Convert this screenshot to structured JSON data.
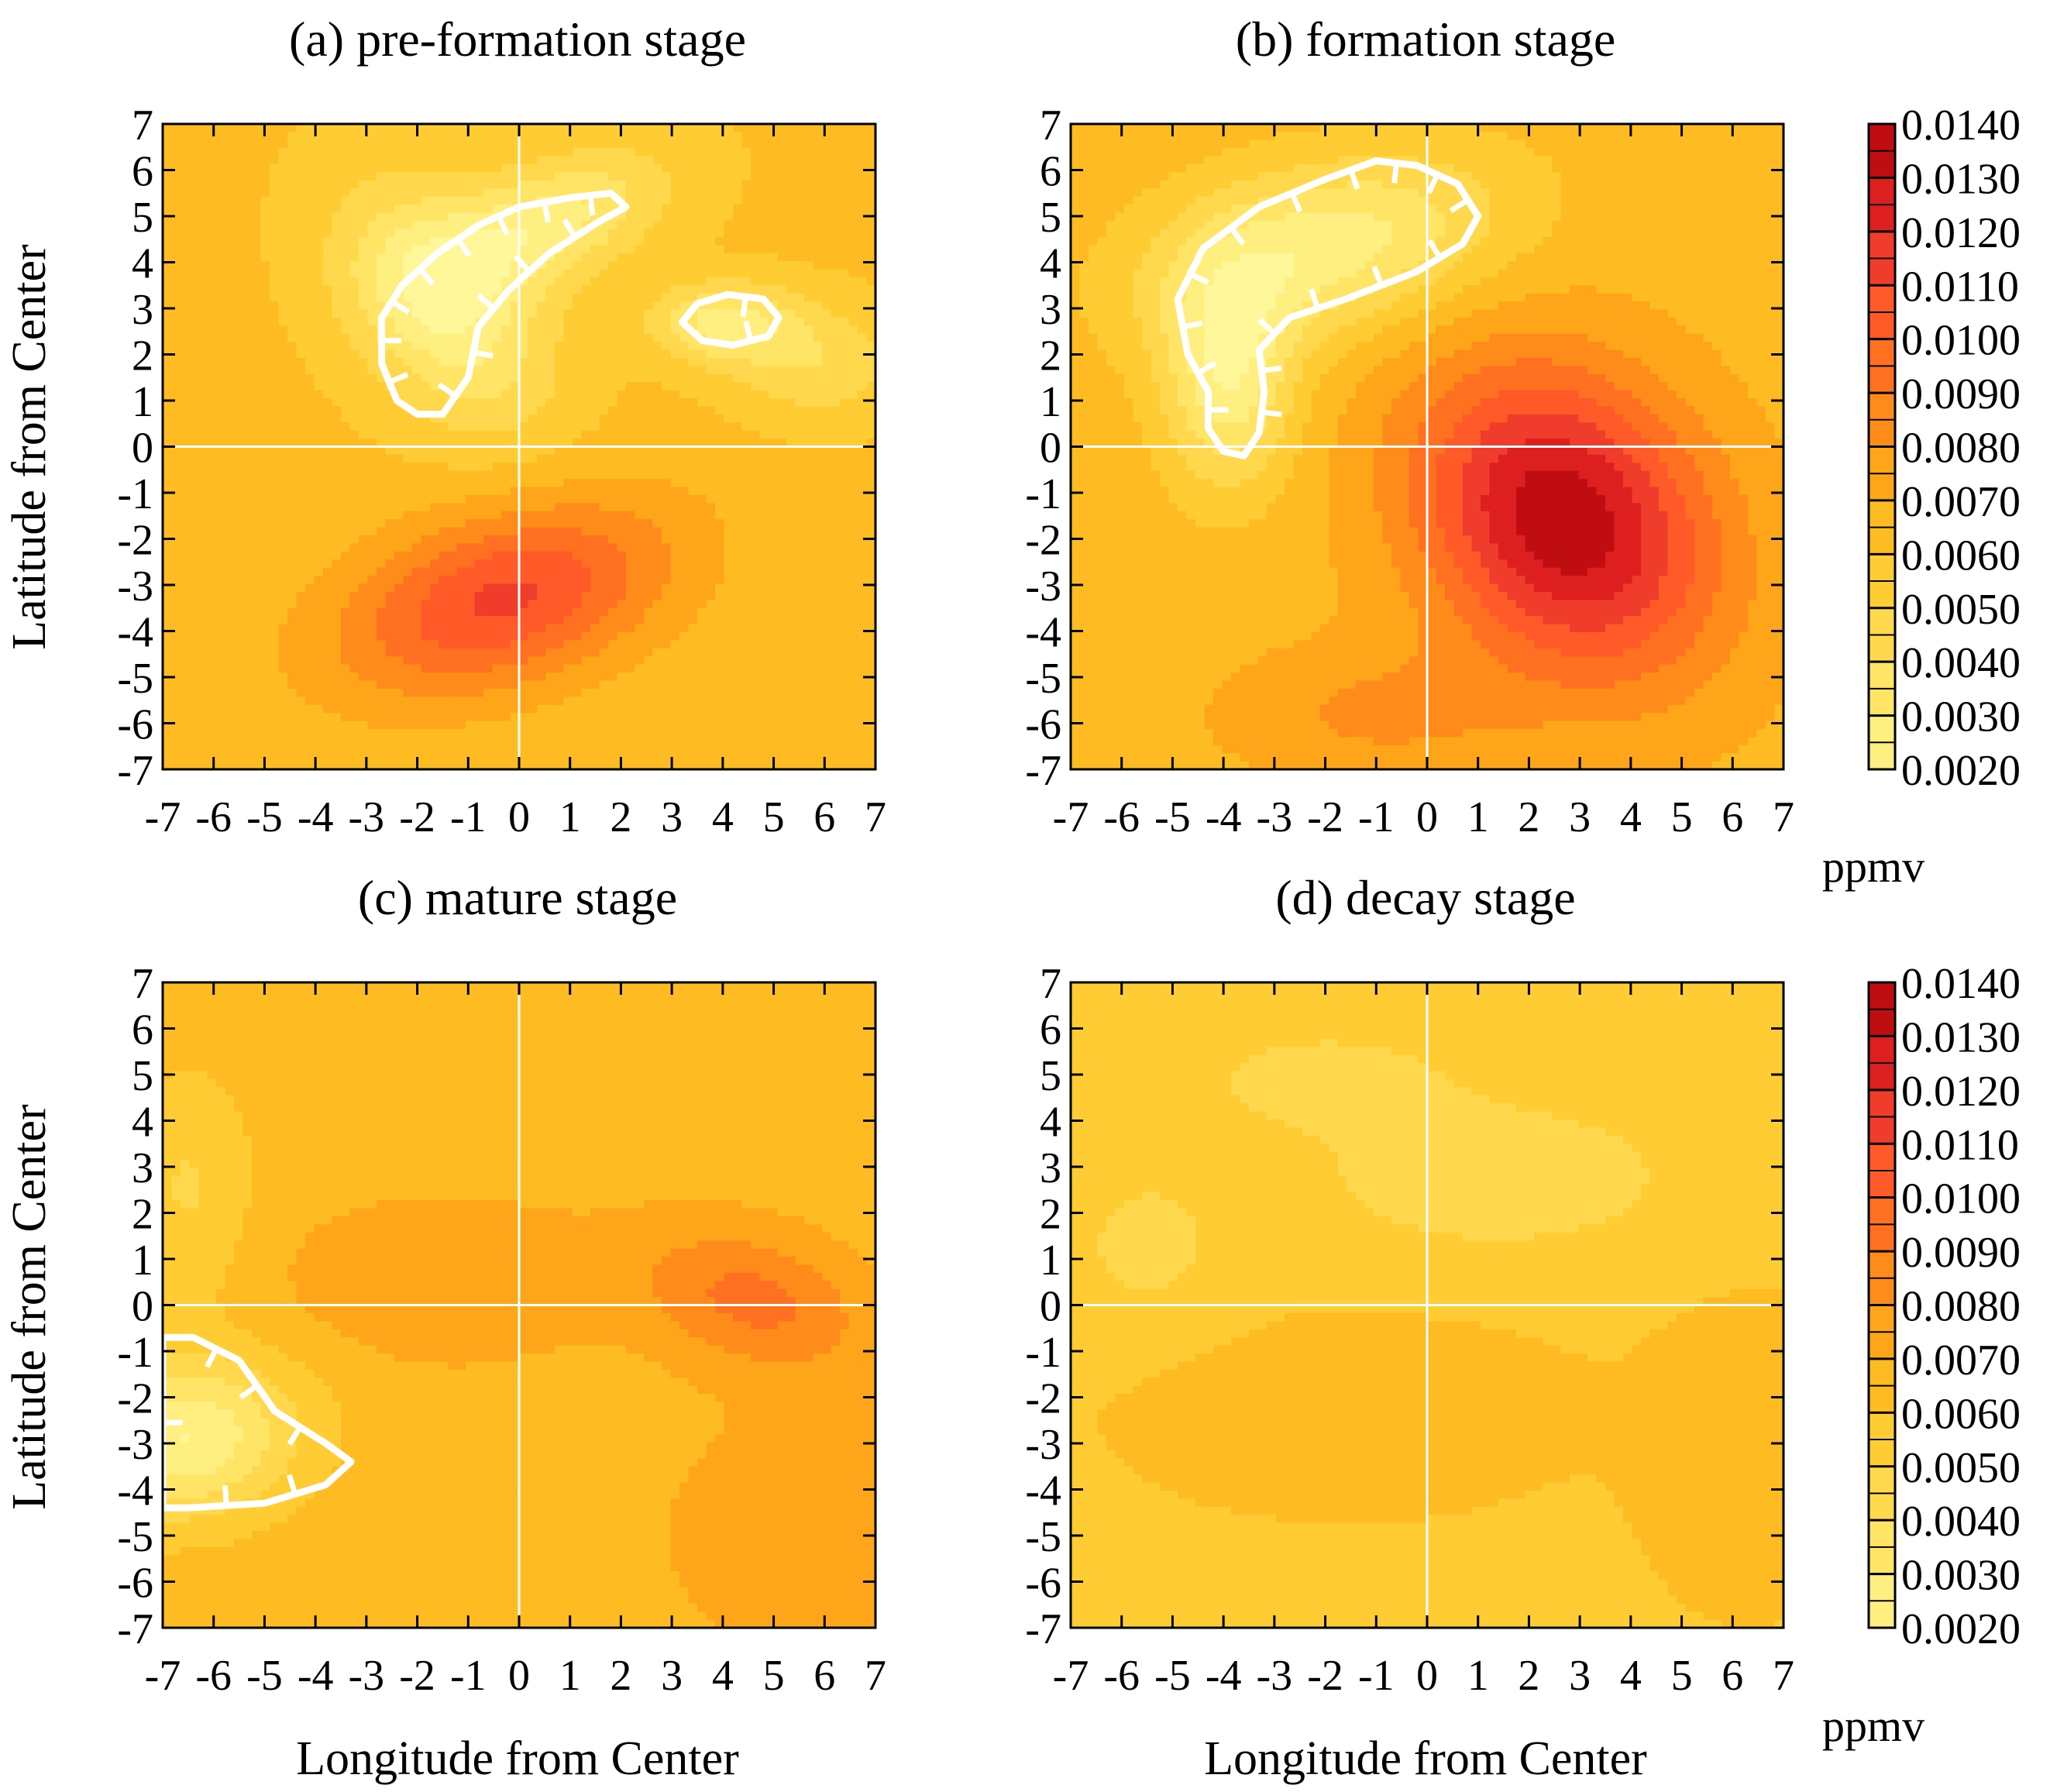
{
  "figure": {
    "colorbar": {
      "levels": [
        "0.0020",
        "0.0030",
        "0.0040",
        "0.0050",
        "0.0060",
        "0.0070",
        "0.0080",
        "0.0090",
        "0.0100",
        "0.0110",
        "0.0120",
        "0.0130",
        "0.0140"
      ],
      "unit": "ppmv",
      "colors": [
        "#fff799",
        "#ffef80",
        "#ffe466",
        "#ffd84d",
        "#ffcc33",
        "#ffbb22",
        "#ffa51a",
        "#ff8c1a",
        "#ff7020",
        "#ff5a28",
        "#f03c2a",
        "#dd1f20",
        "#c00d12",
        "#a50008"
      ]
    }
  },
  "chart_data": [
    {
      "type": "heatmap",
      "title": "(a)  pre-formation stage",
      "xlabel": "",
      "ylabel": "Latitude from Center",
      "xlim": [
        -7,
        7
      ],
      "ylim": [
        -7,
        7
      ],
      "x_ticks": [
        "-7",
        "-6",
        "-5",
        "-4",
        "-3",
        "-2",
        "-1",
        "0",
        "1",
        "2",
        "3",
        "4",
        "5",
        "6",
        "7"
      ],
      "y_ticks": [
        "7",
        "6",
        "5",
        "4",
        "3",
        "2",
        "1",
        "0",
        "-1",
        "-2",
        "-3",
        "-4",
        "-5",
        "-6",
        "-7"
      ],
      "background": 0.0062,
      "features": [
        {
          "kind": "max",
          "x": -0.3,
          "y": -3.3,
          "sx": 2.4,
          "sy": 1.3,
          "rot": 20,
          "value": 0.0112
        },
        {
          "kind": "min",
          "x": -1.5,
          "y": 3.0,
          "sx": 1.2,
          "sy": 2.0,
          "rot": 30,
          "value": 0.0022
        },
        {
          "kind": "min",
          "x": 0.5,
          "y": 4.8,
          "sx": 1.8,
          "sy": 0.9,
          "rot": 25,
          "value": 0.0026
        },
        {
          "kind": "min",
          "x": 4.0,
          "y": 2.7,
          "sx": 1.0,
          "sy": 0.6,
          "rot": 0,
          "value": 0.0027
        },
        {
          "kind": "min",
          "x": 5.8,
          "y": 1.8,
          "sx": 1.2,
          "sy": 0.9,
          "rot": 0,
          "value": 0.0042
        }
      ],
      "hatched_minima": [
        [
          [
            -2.0,
            0.7
          ],
          [
            -1.5,
            0.7
          ],
          [
            -1.0,
            1.5
          ],
          [
            -0.8,
            2.6
          ],
          [
            -0.2,
            3.4
          ],
          [
            0.6,
            4.2
          ],
          [
            1.6,
            4.9
          ],
          [
            2.1,
            5.2
          ],
          [
            1.8,
            5.5
          ],
          [
            1.0,
            5.4
          ],
          [
            0.0,
            5.2
          ],
          [
            -0.8,
            4.8
          ],
          [
            -1.6,
            4.2
          ],
          [
            -2.3,
            3.5
          ],
          [
            -2.7,
            2.8
          ],
          [
            -2.7,
            1.8
          ],
          [
            -2.4,
            1.0
          ]
        ],
        [
          [
            3.2,
            2.7
          ],
          [
            3.6,
            2.3
          ],
          [
            4.2,
            2.2
          ],
          [
            4.9,
            2.4
          ],
          [
            5.1,
            2.8
          ],
          [
            4.8,
            3.2
          ],
          [
            4.1,
            3.3
          ],
          [
            3.5,
            3.1
          ]
        ]
      ]
    },
    {
      "type": "heatmap",
      "title": "(b)  formation stage",
      "xlabel": "",
      "ylabel": "",
      "xlim": [
        -7,
        7
      ],
      "ylim": [
        -7,
        7
      ],
      "x_ticks": [
        "-7",
        "-6",
        "-5",
        "-4",
        "-3",
        "-2",
        "-1",
        "0",
        "1",
        "2",
        "3",
        "4",
        "5",
        "6",
        "7"
      ],
      "y_ticks": [
        "7",
        "6",
        "5",
        "4",
        "3",
        "2",
        "1",
        "0",
        "-1",
        "-2",
        "-3",
        "-4",
        "-5",
        "-6",
        "-7"
      ],
      "background": 0.0066,
      "features": [
        {
          "kind": "max",
          "x": 2.7,
          "y": -1.6,
          "sx": 1.9,
          "sy": 2.5,
          "rot": 30,
          "value": 0.0138
        },
        {
          "kind": "min",
          "x": -2.0,
          "y": 4.3,
          "sx": 2.5,
          "sy": 1.3,
          "rot": 15,
          "value": 0.0023
        },
        {
          "kind": "min",
          "x": -3.9,
          "y": 1.5,
          "sx": 0.9,
          "sy": 1.7,
          "rot": 0,
          "value": 0.0023
        },
        {
          "kind": "max",
          "x": -1.0,
          "y": -5.8,
          "sx": 2.0,
          "sy": 1.0,
          "rot": 0,
          "value": 0.0082
        }
      ],
      "hatched_minima": [
        [
          [
            -3.6,
            -0.2
          ],
          [
            -3.3,
            0.3
          ],
          [
            -3.2,
            1.2
          ],
          [
            -3.3,
            2.1
          ],
          [
            -2.7,
            2.8
          ],
          [
            -1.6,
            3.2
          ],
          [
            -0.2,
            3.8
          ],
          [
            0.7,
            4.4
          ],
          [
            1.0,
            5.0
          ],
          [
            0.6,
            5.7
          ],
          [
            -0.2,
            6.1
          ],
          [
            -1.0,
            6.2
          ],
          [
            -2.0,
            5.8
          ],
          [
            -3.3,
            5.2
          ],
          [
            -4.4,
            4.3
          ],
          [
            -4.9,
            3.2
          ],
          [
            -4.7,
            2.0
          ],
          [
            -4.3,
            1.2
          ],
          [
            -4.3,
            0.4
          ],
          [
            -4.0,
            -0.1
          ]
        ]
      ]
    },
    {
      "type": "heatmap",
      "title": "(c)  mature stage",
      "xlabel": "Longitude from Center",
      "ylabel": "Latitude from Center",
      "xlim": [
        -7,
        7
      ],
      "ylim": [
        -7,
        7
      ],
      "x_ticks": [
        "-7",
        "-6",
        "-5",
        "-4",
        "-3",
        "-2",
        "-1",
        "0",
        "1",
        "2",
        "3",
        "4",
        "5",
        "6",
        "7"
      ],
      "y_ticks": [
        "7",
        "6",
        "5",
        "4",
        "3",
        "2",
        "1",
        "0",
        "-1",
        "-2",
        "-3",
        "-4",
        "-5",
        "-6",
        "-7"
      ],
      "background": 0.0066,
      "features": [
        {
          "kind": "max",
          "x": 4.6,
          "y": 0.1,
          "sx": 1.6,
          "sy": 1.0,
          "rot": -20,
          "value": 0.0093
        },
        {
          "kind": "max",
          "x": -1.5,
          "y": 0.5,
          "sx": 2.2,
          "sy": 1.2,
          "rot": 0,
          "value": 0.0079
        },
        {
          "kind": "min",
          "x": -6.6,
          "y": -2.9,
          "sx": 1.6,
          "sy": 1.2,
          "rot": 10,
          "value": 0.002
        },
        {
          "kind": "min",
          "x": -6.5,
          "y": 2.5,
          "sx": 0.9,
          "sy": 1.8,
          "rot": 0,
          "value": 0.0049
        },
        {
          "kind": "max",
          "x": 5.5,
          "y": -5.0,
          "sx": 1.8,
          "sy": 1.8,
          "rot": 0,
          "value": 0.0077
        }
      ],
      "hatched_minima": [
        [
          [
            -7.0,
            -0.7
          ],
          [
            -6.4,
            -0.7
          ],
          [
            -5.5,
            -1.2
          ],
          [
            -4.8,
            -2.3
          ],
          [
            -3.8,
            -3.0
          ],
          [
            -3.3,
            -3.4
          ],
          [
            -3.8,
            -3.9
          ],
          [
            -5.0,
            -4.3
          ],
          [
            -6.5,
            -4.4
          ],
          [
            -7.0,
            -4.4
          ]
        ]
      ]
    },
    {
      "type": "heatmap",
      "title": "(d)  decay stage",
      "xlabel": "Longitude from Center",
      "ylabel": "",
      "xlim": [
        -7,
        7
      ],
      "ylim": [
        -7,
        7
      ],
      "x_ticks": [
        "-7",
        "-6",
        "-5",
        "-4",
        "-3",
        "-2",
        "-1",
        "0",
        "1",
        "2",
        "3",
        "4",
        "5",
        "6",
        "7"
      ],
      "y_ticks": [
        "7",
        "6",
        "5",
        "4",
        "3",
        "2",
        "1",
        "0",
        "-1",
        "-2",
        "-3",
        "-4",
        "-5",
        "-6",
        "-7"
      ],
      "background": 0.0059,
      "features": [
        {
          "kind": "min",
          "x": 1.4,
          "y": 2.8,
          "sx": 2.6,
          "sy": 1.2,
          "rot": 0,
          "value": 0.0042
        },
        {
          "kind": "min",
          "x": -2.0,
          "y": 4.9,
          "sx": 1.8,
          "sy": 0.8,
          "rot": 0,
          "value": 0.0045
        },
        {
          "kind": "min",
          "x": -5.5,
          "y": 1.3,
          "sx": 1.2,
          "sy": 1.3,
          "rot": 0,
          "value": 0.0047
        },
        {
          "kind": "max",
          "x": -1.5,
          "y": -2.3,
          "sx": 2.5,
          "sy": 1.2,
          "rot": 0,
          "value": 0.0067
        },
        {
          "kind": "max",
          "x": 6.3,
          "y": -3.2,
          "sx": 1.2,
          "sy": 1.8,
          "rot": 0,
          "value": 0.0068
        }
      ],
      "hatched_minima": []
    }
  ]
}
